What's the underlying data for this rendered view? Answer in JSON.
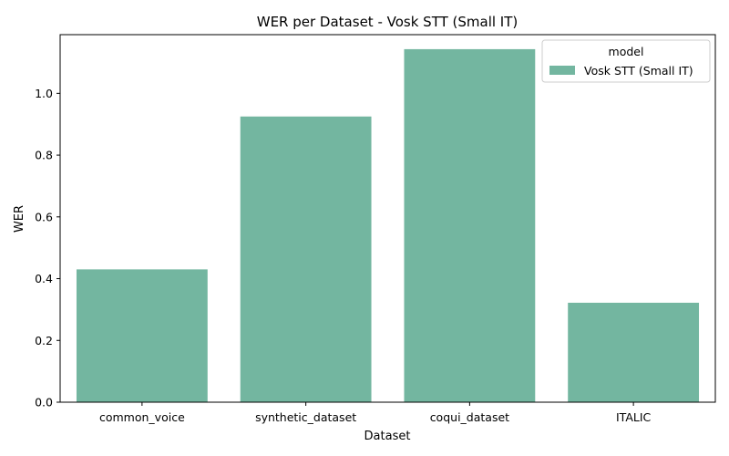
{
  "chart_data": {
    "type": "bar",
    "title": "WER per Dataset - Vosk STT (Small IT)",
    "xlabel": "Dataset",
    "ylabel": "WER",
    "categories": [
      "common_voice",
      "synthetic_dataset",
      "coqui_dataset",
      "ITALIC"
    ],
    "series": [
      {
        "name": "Vosk STT (Small IT)",
        "values": [
          0.43,
          0.925,
          1.143,
          0.322
        ],
        "color": "#73b6a0"
      }
    ],
    "ylim": [
      0,
      1.19
    ],
    "yticks": [
      "0.0",
      "0.2",
      "0.4",
      "0.6",
      "0.8",
      "1.0"
    ],
    "grid": false,
    "legend": {
      "title": "model",
      "position": "top-right"
    }
  }
}
